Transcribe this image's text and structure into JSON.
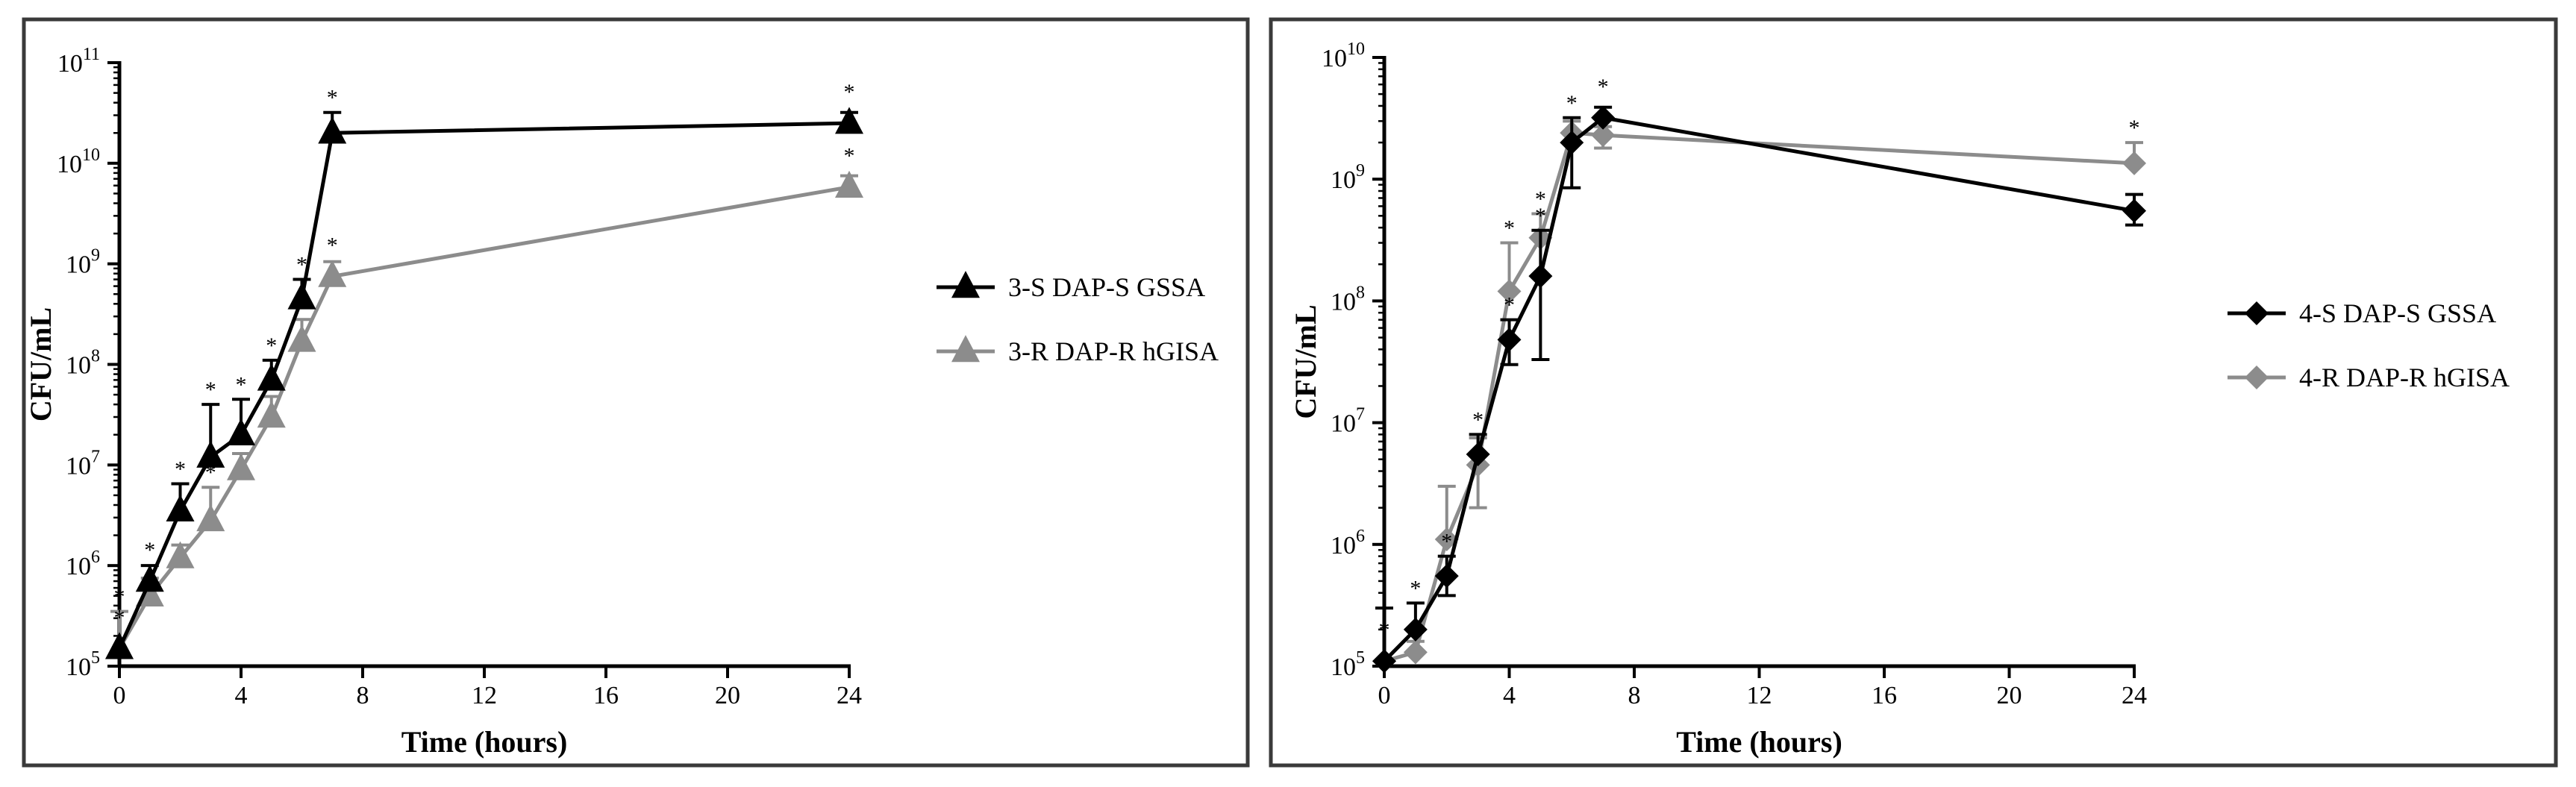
{
  "colors": {
    "black_series": "#000000",
    "gray_series": "#8c8c8c",
    "frame": "#3a3a3a"
  },
  "chart_data": [
    {
      "type": "line",
      "xlabel": "Time (hours)",
      "ylabel": "CFU/mL",
      "xlim": [
        0,
        24
      ],
      "ylim_log10": [
        5,
        11
      ],
      "yscale": "log",
      "x_ticks": [
        "0",
        "4",
        "8",
        "12",
        "16",
        "20",
        "24"
      ],
      "y_ticks": [
        {
          "base": "10",
          "exp": "5"
        },
        {
          "base": "10",
          "exp": "6"
        },
        {
          "base": "10",
          "exp": "7"
        },
        {
          "base": "10",
          "exp": "8"
        },
        {
          "base": "10",
          "exp": "9"
        },
        {
          "base": "10",
          "exp": "10"
        },
        {
          "base": "10",
          "exp": "11"
        }
      ],
      "legend_position": "right",
      "annotation_symbol": "*",
      "series": [
        {
          "name": "3-S DAP-S GSSA",
          "marker": "triangle",
          "color": "#000000",
          "x": [
            0,
            1,
            2,
            3,
            4,
            5,
            6,
            7,
            24
          ],
          "y": [
            150000,
            700000,
            3500000,
            12000000,
            20000000,
            70000000,
            450000000,
            20000000000,
            25000000000
          ],
          "err_up": [
            null,
            1000000,
            6500000,
            40000000,
            45000000,
            110000000,
            700000000,
            32000000000,
            32000000000
          ],
          "stars": [
            true,
            true,
            true,
            true,
            true,
            true,
            true,
            true,
            true
          ]
        },
        {
          "name": "3-R DAP-R hGISA",
          "marker": "triangle",
          "color": "#8c8c8c",
          "x": [
            0,
            1,
            2,
            3,
            4,
            5,
            6,
            7,
            24
          ],
          "y": [
            150000,
            500000,
            1200000,
            2800000,
            9000000,
            30000000,
            170000000,
            750000000,
            5800000000
          ],
          "err_up": [
            350000,
            750000,
            1600000,
            6000000,
            13000000,
            48000000,
            280000000,
            1050000000,
            7500000000
          ],
          "stars": [
            true,
            false,
            false,
            true,
            false,
            false,
            false,
            true,
            true
          ]
        }
      ]
    },
    {
      "type": "line",
      "xlabel": "Time (hours)",
      "ylabel": "CFU/mL",
      "xlim": [
        0,
        24
      ],
      "ylim_log10": [
        5,
        10
      ],
      "yscale": "log",
      "x_ticks": [
        "0",
        "4",
        "8",
        "12",
        "16",
        "20",
        "24"
      ],
      "y_ticks": [
        {
          "base": "10",
          "exp": "5"
        },
        {
          "base": "10",
          "exp": "6"
        },
        {
          "base": "10",
          "exp": "7"
        },
        {
          "base": "10",
          "exp": "8"
        },
        {
          "base": "10",
          "exp": "9"
        },
        {
          "base": "10",
          "exp": "10"
        }
      ],
      "legend_position": "right",
      "annotation_symbol": "*",
      "series": [
        {
          "name": "4-S DAP-S GSSA",
          "marker": "diamond",
          "color": "#000000",
          "x": [
            0,
            1,
            2,
            3,
            4,
            5,
            6,
            7,
            24
          ],
          "y": [
            110000,
            200000,
            550000,
            5500000,
            48000000,
            160000000,
            2000000000,
            3200000000,
            550000000
          ],
          "err_up": [
            300000,
            330000,
            800000,
            8000000,
            70000000,
            380000000,
            3200000000,
            3900000000,
            750000000
          ],
          "err_down": [
            null,
            null,
            380000,
            null,
            30000000,
            33000000,
            850000000,
            null,
            420000000
          ],
          "stars": [
            false,
            true,
            true,
            true,
            true,
            true,
            true,
            true,
            false
          ]
        },
        {
          "name": "4-R DAP-R hGISA",
          "marker": "diamond",
          "color": "#8c8c8c",
          "x": [
            0,
            1,
            2,
            3,
            4,
            5,
            6,
            7,
            24
          ],
          "y": [
            110000,
            130000,
            1100000,
            4500000,
            120000000,
            330000000,
            2400000000,
            2300000000,
            1350000000
          ],
          "err_up": [
            null,
            160000,
            3000000,
            7500000,
            300000000,
            520000000,
            3000000000,
            2700000000,
            2000000000
          ],
          "err_down": [
            null,
            null,
            null,
            2000000,
            null,
            null,
            null,
            1800000000,
            null
          ],
          "stars": [
            true,
            false,
            false,
            false,
            true,
            true,
            false,
            false,
            true
          ]
        }
      ]
    }
  ]
}
